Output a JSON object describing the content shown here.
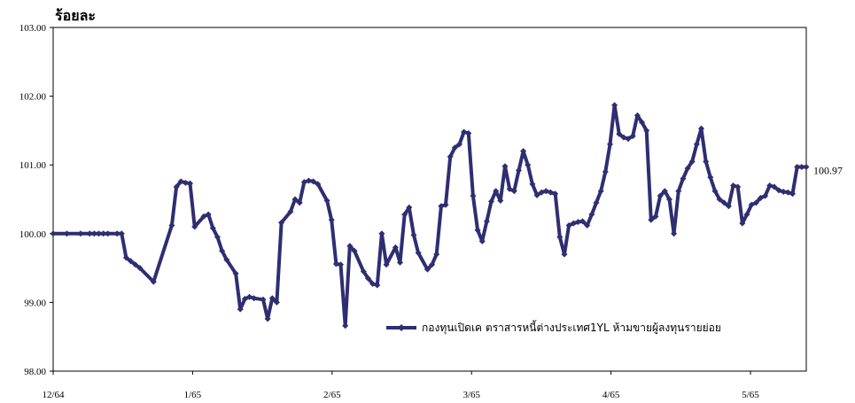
{
  "chart_data": {
    "type": "line",
    "ylabel": "ร้อยละ",
    "ylim": [
      98.0,
      103.0
    ],
    "yticks": [
      "98.00",
      "99.00",
      "100.00",
      "101.00",
      "102.00",
      "103.00"
    ],
    "xticks": [
      "12/64",
      "1/65",
      "2/65",
      "3/65",
      "4/65",
      "5/65"
    ],
    "grid": false,
    "legend_position": "bottom-right",
    "end_value_label": "100.97",
    "series": [
      {
        "name": "กองทุนเปิดเค ตราสารหนี้ต่างประเทศ1YL ห้ามขายผู้ลงทุนรายย่อย",
        "color": "#2e2e72",
        "x": [
          0,
          3,
          6,
          8,
          9,
          10,
          11,
          12,
          14,
          15,
          16,
          17,
          18,
          19,
          22,
          26,
          27,
          28,
          29,
          30,
          31,
          33,
          34,
          35,
          36,
          37,
          38,
          40,
          41,
          42,
          43,
          44,
          46,
          47,
          48,
          49,
          50,
          52,
          53,
          54,
          55,
          56,
          57,
          58,
          60,
          61,
          62,
          63,
          64,
          65,
          66,
          68,
          69,
          70,
          71,
          72,
          73,
          75,
          76,
          77,
          78,
          79,
          80,
          82,
          83,
          84,
          85,
          86,
          87,
          88,
          89,
          90,
          91,
          92,
          93,
          94,
          95,
          96,
          97,
          98,
          99,
          100,
          101,
          102,
          103,
          104,
          105,
          106,
          107,
          108,
          109,
          110,
          111,
          112,
          113,
          114,
          115,
          116,
          117,
          118,
          119,
          120,
          121,
          122,
          123,
          124,
          125,
          126,
          127,
          128,
          129,
          130,
          131,
          132,
          133,
          134,
          135,
          136,
          137,
          138,
          139,
          140,
          141,
          142,
          143,
          144,
          145,
          146,
          147,
          148,
          149,
          150,
          151,
          152,
          153,
          154,
          155,
          156,
          157,
          158,
          159,
          160,
          161,
          162,
          163,
          164,
          165
        ],
        "values": [
          100.0,
          100.0,
          100.0,
          100.0,
          100.0,
          100.0,
          100.0,
          100.0,
          100.0,
          100.0,
          99.65,
          99.6,
          99.55,
          99.5,
          99.3,
          100.12,
          100.68,
          100.76,
          100.74,
          100.73,
          100.1,
          100.25,
          100.28,
          100.08,
          99.95,
          99.75,
          99.62,
          99.42,
          98.9,
          99.05,
          99.08,
          99.06,
          99.04,
          98.76,
          99.06,
          99.0,
          100.16,
          100.32,
          100.5,
          100.45,
          100.75,
          100.77,
          100.76,
          100.72,
          100.48,
          100.2,
          99.56,
          99.55,
          98.66,
          99.82,
          99.75,
          99.45,
          99.35,
          99.27,
          99.25,
          100.0,
          99.55,
          99.8,
          99.58,
          100.28,
          100.38,
          99.98,
          99.72,
          99.48,
          99.55,
          99.7,
          100.4,
          100.42,
          101.12,
          101.25,
          101.3,
          101.48,
          101.46,
          100.55,
          100.05,
          99.89,
          100.18,
          100.47,
          100.62,
          100.48,
          100.98,
          100.65,
          100.62,
          100.92,
          101.2,
          101.0,
          100.72,
          100.56,
          100.6,
          100.62,
          100.6,
          100.58,
          99.95,
          99.7,
          100.12,
          100.15,
          100.17,
          100.18,
          100.12,
          100.28,
          100.45,
          100.62,
          100.9,
          101.3,
          101.87,
          101.45,
          101.4,
          101.38,
          101.42,
          101.72,
          101.62,
          101.5,
          100.2,
          100.25,
          100.55,
          100.62,
          100.5,
          100.0,
          100.62,
          100.8,
          100.95,
          101.05,
          101.3,
          101.53,
          101.05,
          100.82,
          100.62,
          100.5,
          100.45,
          100.4,
          100.7,
          100.68,
          100.15,
          100.28,
          100.42,
          100.45,
          100.52,
          100.55,
          100.7,
          100.68,
          100.63,
          100.61,
          100.6,
          100.58,
          100.97,
          100.97,
          100.97
        ],
        "markers": true
      }
    ]
  }
}
